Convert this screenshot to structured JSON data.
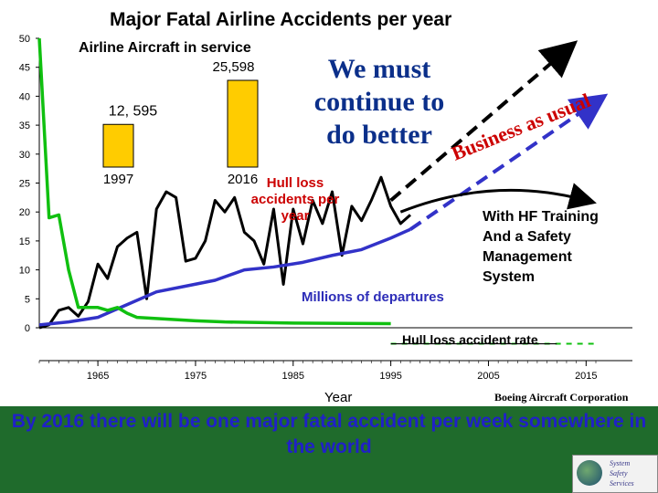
{
  "header": {
    "title": "Major Fatal Airline Accidents per year",
    "subtitle": "Airline Aircraft in service",
    "slogan": "We must continue to do better",
    "business_as_usual": "Business as usual"
  },
  "annotations": {
    "hull_loss": "Hull loss accidents per year",
    "hf_training": "With HF Training\nAnd a Safety\nManagement\nSystem",
    "departures": "Millions of departures",
    "rate": "Hull loss accident rate"
  },
  "footer": {
    "xlabel": "Year",
    "credit": "Boeing Aircraft Corporation",
    "message": "By 2016 there will be one major fatal accident per week somewhere in the world"
  },
  "logo": {
    "text": "System\nSafety\nServices"
  },
  "colors": {
    "accidents": "#000000",
    "departures": "#3232c8",
    "rate": "#10c010",
    "bars": "#ffcc00",
    "slogan": "#0b2f8a",
    "hull_label": "#cc0000",
    "footer_bg": "#1f6b2c",
    "footer_text": "#2020c8"
  },
  "chart_data": {
    "type": "line",
    "title": "Major Fatal Airline Accidents per year",
    "xlabel": "Year",
    "xlim": [
      1959,
      2016
    ],
    "ylim": [
      0,
      50
    ],
    "yticks": [
      0,
      5,
      10,
      15,
      20,
      25,
      30,
      35,
      40,
      45,
      50
    ],
    "xtick_labels": [
      "1965",
      "1975",
      "1985",
      "1995",
      "2005",
      "2015"
    ],
    "series": [
      {
        "name": "Hull loss accidents per year",
        "x": [
          1959,
          1960,
          1961,
          1962,
          1963,
          1964,
          1965,
          1966,
          1967,
          1968,
          1969,
          1970,
          1971,
          1972,
          1973,
          1974,
          1975,
          1976,
          1977,
          1978,
          1979,
          1980,
          1981,
          1982,
          1983,
          1984,
          1985,
          1986,
          1987,
          1988,
          1989,
          1990,
          1991,
          1992,
          1993,
          1994,
          1995,
          1996,
          1997
        ],
        "y": [
          0,
          0.5,
          3,
          3.5,
          2,
          4.5,
          11,
          8.5,
          14,
          15.5,
          16.5,
          5,
          20.5,
          23.5,
          22.5,
          11.5,
          12,
          15,
          22,
          20,
          22.5,
          16.5,
          15,
          11,
          20.5,
          7.5,
          20.5,
          14.5,
          22,
          18,
          23.5,
          12.5,
          21,
          18.5,
          22,
          26,
          21,
          18,
          19.5
        ]
      },
      {
        "name": "Millions of departures",
        "x": [
          1959,
          1962,
          1965,
          1968,
          1971,
          1974,
          1977,
          1980,
          1983,
          1986,
          1989,
          1992,
          1995,
          1997
        ],
        "y": [
          0.5,
          1,
          1.8,
          4,
          6.2,
          7.2,
          8.2,
          10,
          10.5,
          11.3,
          12.5,
          13.5,
          15.5,
          17
        ]
      },
      {
        "name": "Hull loss accident rate",
        "x": [
          1959,
          1960,
          1961,
          1962,
          1963,
          1964,
          1965,
          1966,
          1967,
          1968,
          1969,
          1972,
          1975,
          1978,
          1985,
          1995
        ],
        "y": [
          50,
          19,
          19.5,
          10,
          3.5,
          3.5,
          3.5,
          3,
          3.5,
          2.5,
          1.8,
          1.5,
          1.2,
          1,
          0.8,
          0.7
        ]
      }
    ],
    "projections": [
      {
        "name": "Business as usual",
        "style": "dashed",
        "color": "#000000",
        "from": [
          1995,
          22
        ],
        "to": [
          2013,
          48
        ]
      },
      {
        "name": "Business as usual",
        "style": "dashed",
        "color": "#3232c8",
        "from": [
          1997,
          17
        ],
        "to": [
          2016,
          39
        ]
      },
      {
        "name": "With HF Training And a Safety Management System",
        "style": "solid-curve",
        "color": "#000000",
        "from": [
          1996,
          20
        ],
        "to": [
          2015,
          22
        ]
      },
      {
        "name": "Hull loss accident rate",
        "style": "dashed",
        "color": "#10c010",
        "from": [
          1995,
          0.7
        ],
        "to": [
          2016,
          0.7
        ]
      }
    ],
    "inset_bars": {
      "title": "Airline Aircraft in service",
      "categories": [
        "1997",
        "2016"
      ],
      "values": [
        12595,
        25598
      ],
      "value_labels": [
        "12, 595",
        "25,598"
      ]
    }
  }
}
